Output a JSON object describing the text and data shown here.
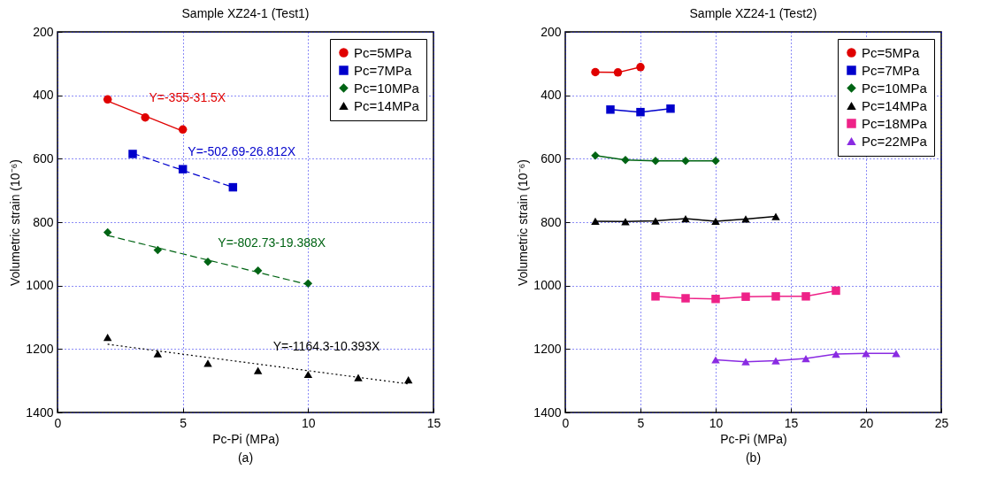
{
  "chart_data": [
    {
      "type": "scatter",
      "title": "Sample XZ24-1 (Test1)",
      "xlabel": "Pc-Pi (MPa)",
      "ylabel": "Volumetric strain (10⁻⁶)",
      "xlim": [
        0,
        15
      ],
      "xticks": [
        0,
        5,
        10,
        15
      ],
      "ylim": [
        1400,
        200
      ],
      "yticks": [
        200,
        400,
        600,
        800,
        1000,
        1200,
        1400
      ],
      "grid": true,
      "legend": "top right",
      "annotations": [
        "Y=-355-31.5X",
        "Y=-502.69-26.812X",
        "Y=-802.73-19.388X",
        "Y=-1164.3-10.393X",
        "(a)"
      ],
      "series": [
        {
          "name": "Pc=5MPa",
          "color": "#e00000",
          "marker": "circle",
          "x": [
            2,
            3.5,
            5
          ],
          "values": [
            413,
            470,
            508
          ]
        },
        {
          "name": "Pc=7MPa",
          "color": "#0000cc",
          "marker": "square",
          "x": [
            3,
            5,
            7
          ],
          "values": [
            585,
            633,
            690
          ]
        },
        {
          "name": "Pc=10MPa",
          "color": "#006414",
          "marker": "diamond",
          "x": [
            2,
            4,
            6,
            8,
            10
          ],
          "values": [
            832,
            888,
            925,
            953,
            993
          ]
        },
        {
          "name": "Pc=14MPa",
          "color": "#000000",
          "marker": "triangle",
          "x": [
            2,
            4,
            6,
            8,
            10,
            12,
            14
          ],
          "values": [
            1163,
            1215,
            1245,
            1268,
            1280,
            1290,
            1297
          ]
        },
        {
          "type": "line",
          "color": "#e00000",
          "line_style": "solid",
          "x": [
            2,
            5
          ],
          "values": [
            418,
            513
          ]
        },
        {
          "type": "line",
          "color": "#0000cc",
          "line_style": "dashed",
          "x": [
            3,
            7
          ],
          "values": [
            583,
            690
          ]
        },
        {
          "type": "line",
          "color": "#006414",
          "line_style": "dashed",
          "x": [
            2,
            10
          ],
          "values": [
            842,
            997
          ]
        },
        {
          "type": "line",
          "color": "#000000",
          "line_style": "dotted",
          "x": [
            2,
            14
          ],
          "values": [
            1185,
            1310
          ]
        }
      ]
    },
    {
      "type": "line",
      "title": "Sample XZ24-1 (Test2)",
      "xlabel": "Pc-Pi (MPa)",
      "ylabel": "Volumetric strain (10⁻⁶)",
      "xlim": [
        0,
        25
      ],
      "xticks": [
        0,
        5,
        10,
        15,
        20,
        25
      ],
      "ylim": [
        1400,
        200
      ],
      "yticks": [
        200,
        400,
        600,
        800,
        1000,
        1200,
        1400
      ],
      "grid": true,
      "legend": "top right",
      "annotations": [
        "(b)"
      ],
      "series": [
        {
          "name": "Pc=5MPa",
          "color": "#e00000",
          "marker": "circle",
          "x": [
            2,
            3.5,
            5
          ],
          "values": [
            327,
            328,
            311
          ]
        },
        {
          "name": "Pc=7MPa",
          "color": "#0000cc",
          "marker": "square",
          "x": [
            3,
            5,
            7
          ],
          "values": [
            445,
            453,
            442
          ]
        },
        {
          "name": "Pc=10MPa",
          "color": "#006414",
          "marker": "diamond",
          "x": [
            2,
            4,
            6,
            8,
            10
          ],
          "values": [
            590,
            604,
            607,
            607,
            607
          ]
        },
        {
          "name": "Pc=14MPa",
          "color": "#000000",
          "marker": "triangle",
          "x": [
            2,
            4,
            6,
            8,
            10,
            12,
            14
          ],
          "values": [
            797,
            798,
            796,
            789,
            797,
            790,
            782
          ]
        },
        {
          "name": "Pc=18MPa",
          "color": "#ee2288",
          "marker": "square",
          "x": [
            6,
            8,
            10,
            12,
            14,
            16,
            18
          ],
          "values": [
            1034,
            1040,
            1042,
            1035,
            1034,
            1034,
            1016
          ]
        },
        {
          "name": "Pc=22MPa",
          "color": "#8a2be2",
          "marker": "triangle",
          "x": [
            10,
            12,
            14,
            16,
            18,
            20,
            22
          ],
          "values": [
            1234,
            1240,
            1237,
            1230,
            1216,
            1214,
            1214
          ]
        }
      ]
    }
  ]
}
